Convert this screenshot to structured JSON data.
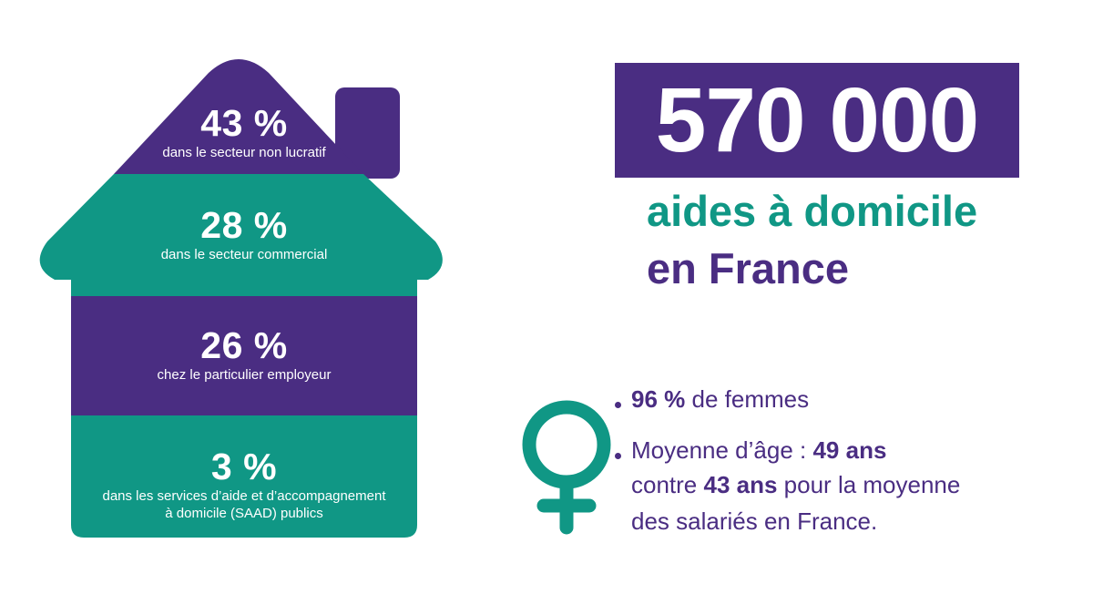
{
  "colors": {
    "purple": "#4a2d82",
    "teal": "#109785",
    "background": "#ffffff"
  },
  "house_segments": [
    {
      "percent": "43 %",
      "label": "dans le secteur non lucratif",
      "color": "#4a2d82"
    },
    {
      "percent": "28 %",
      "label": "dans le secteur commercial",
      "color": "#109785"
    },
    {
      "percent": "26 %",
      "label": "chez le particulier employeur",
      "color": "#4a2d82"
    },
    {
      "percent": "3 %",
      "label_line1": "dans les services d’aide et d’accompagnement",
      "label_line2": "à domicile (SAAD) publics",
      "color": "#109785"
    }
  ],
  "headline": {
    "number": "570 000",
    "line1": "aides à domicile",
    "line2": "en France"
  },
  "female_icon": "venus-icon",
  "stats": {
    "women_value": "96 %",
    "women_text": " de femmes",
    "age_prefix": "Moyenne d’âge : ",
    "age_value": "49 ans",
    "compare_prefix": "contre ",
    "compare_value": "43 ans",
    "compare_suffix": " pour la moyenne",
    "compare_line2": "des salariés en France."
  }
}
